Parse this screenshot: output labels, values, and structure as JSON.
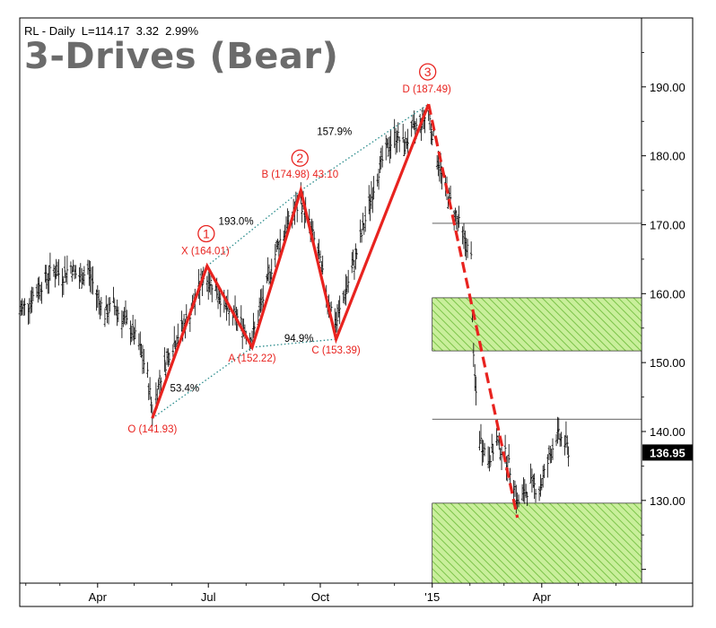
{
  "header": {
    "info": "RL - Daily  L=114.17  3.32  2.99%",
    "title": "3-Drives (Bear)"
  },
  "last_price_label": "136.95",
  "colors": {
    "pattern": "#e8231f",
    "label": "#e8231f",
    "ratio_line": "#2a8c8c",
    "zone_fill": "#c9ef9b",
    "zone_hatch": "#7cc44a",
    "bars": "#000000"
  },
  "chart_data": {
    "type": "line",
    "symbol": "RL",
    "interval": "Daily",
    "ylim": [
      118,
      200
    ],
    "y_ticks": [
      "190.00",
      "180.00",
      "170.00",
      "160.00",
      "150.00",
      "140.00",
      "130.00"
    ],
    "y_tick_values": [
      190,
      180,
      170,
      160,
      150,
      140,
      130
    ],
    "x_ticks": [
      "Apr",
      "Jul",
      "Oct",
      "'15",
      "Apr"
    ],
    "x_tick_dates": [
      "2014-04-01",
      "2014-07-01",
      "2014-10-01",
      "2015-01-01",
      "2015-04-01"
    ],
    "x_range": [
      "2014-01-27",
      "2015-06-22"
    ],
    "pattern_points": [
      {
        "label": "O (141.93)",
        "date": "2014-05-16",
        "price": 141.93
      },
      {
        "label": "X (164.01)",
        "date": "2014-06-30",
        "price": 164.01
      },
      {
        "label": "A (152.22)",
        "date": "2014-08-06",
        "price": 152.22
      },
      {
        "label": "B (174.98) 43.10",
        "date": "2014-09-15",
        "price": 174.98
      },
      {
        "label": "C (153.39)",
        "date": "2014-10-14",
        "price": 153.39
      },
      {
        "label": "D (187.49)",
        "date": "2014-12-29",
        "price": 187.49
      }
    ],
    "projection": {
      "from": {
        "date": "2014-12-29",
        "price": 187.49
      },
      "to": {
        "date": "2015-03-12",
        "price": 127.5
      },
      "style": "dashed"
    },
    "drive_markers": [
      "1",
      "2",
      "3"
    ],
    "ratios": [
      "53.4%",
      "193.0%",
      "94.9%",
      "157.9%"
    ],
    "zones": [
      {
        "date_start": "2015-01-01",
        "date_end": "2015-06-22",
        "price_low": 151.7,
        "price_high": 159.4
      },
      {
        "date_start": "2015-01-01",
        "date_end": "2015-06-22",
        "price_low": 118,
        "price_high": 129.6
      }
    ],
    "levels": [
      170.2,
      141.8
    ],
    "last_price": 136.95,
    "price_series": [
      [
        "2014-01-27",
        157.5
      ],
      [
        "2014-02-03",
        158.5
      ],
      [
        "2014-02-10",
        160.5
      ],
      [
        "2014-02-17",
        162.0
      ],
      [
        "2014-02-24",
        163.5
      ],
      [
        "2014-03-03",
        162.5
      ],
      [
        "2014-03-10",
        164.0
      ],
      [
        "2014-03-17",
        162.0
      ],
      [
        "2014-03-24",
        163.5
      ],
      [
        "2014-03-31",
        160.0
      ],
      [
        "2014-04-07",
        157.0
      ],
      [
        "2014-04-14",
        158.5
      ],
      [
        "2014-04-21",
        156.5
      ],
      [
        "2014-04-28",
        155.0
      ],
      [
        "2014-05-05",
        152.5
      ],
      [
        "2014-05-12",
        148.0
      ],
      [
        "2014-05-16",
        143.0
      ],
      [
        "2014-05-23",
        148.0
      ],
      [
        "2014-05-30",
        151.5
      ],
      [
        "2014-06-06",
        154.0
      ],
      [
        "2014-06-13",
        156.0
      ],
      [
        "2014-06-20",
        159.0
      ],
      [
        "2014-06-27",
        162.5
      ],
      [
        "2014-07-04",
        161.5
      ],
      [
        "2014-07-11",
        159.5
      ],
      [
        "2014-07-18",
        157.0
      ],
      [
        "2014-07-25",
        156.5
      ],
      [
        "2014-08-01",
        154.5
      ],
      [
        "2014-08-06",
        153.5
      ],
      [
        "2014-08-13",
        158.0
      ],
      [
        "2014-08-20",
        162.5
      ],
      [
        "2014-08-27",
        167.0
      ],
      [
        "2014-09-03",
        169.5
      ],
      [
        "2014-09-10",
        172.0
      ],
      [
        "2014-09-15",
        173.5
      ],
      [
        "2014-09-22",
        170.0
      ],
      [
        "2014-09-29",
        166.0
      ],
      [
        "2014-10-06",
        160.0
      ],
      [
        "2014-10-14",
        155.5
      ],
      [
        "2014-10-21",
        160.0
      ],
      [
        "2014-10-28",
        164.0
      ],
      [
        "2014-11-04",
        168.5
      ],
      [
        "2014-11-11",
        173.5
      ],
      [
        "2014-11-18",
        178.0
      ],
      [
        "2014-11-25",
        181.0
      ],
      [
        "2014-12-02",
        183.0
      ],
      [
        "2014-12-09",
        181.5
      ],
      [
        "2014-12-16",
        183.5
      ],
      [
        "2014-12-23",
        185.0
      ],
      [
        "2014-12-29",
        186.0
      ],
      [
        "2015-01-05",
        180.0
      ],
      [
        "2015-01-12",
        175.0
      ],
      [
        "2015-01-19",
        172.0
      ],
      [
        "2015-01-26",
        168.5
      ],
      [
        "2015-02-02",
        165.0
      ],
      [
        "2015-02-04",
        150.0
      ],
      [
        "2015-02-09",
        139.0
      ],
      [
        "2015-02-16",
        136.0
      ],
      [
        "2015-02-23",
        138.5
      ],
      [
        "2015-03-02",
        136.5
      ],
      [
        "2015-03-09",
        133.0
      ],
      [
        "2015-03-12",
        129.5
      ],
      [
        "2015-03-16",
        130.5
      ],
      [
        "2015-03-23",
        132.5
      ],
      [
        "2015-03-30",
        131.5
      ],
      [
        "2015-04-06",
        135.5
      ],
      [
        "2015-04-13",
        139.5
      ],
      [
        "2015-04-20",
        138.5
      ],
      [
        "2015-04-24",
        136.9
      ]
    ]
  }
}
